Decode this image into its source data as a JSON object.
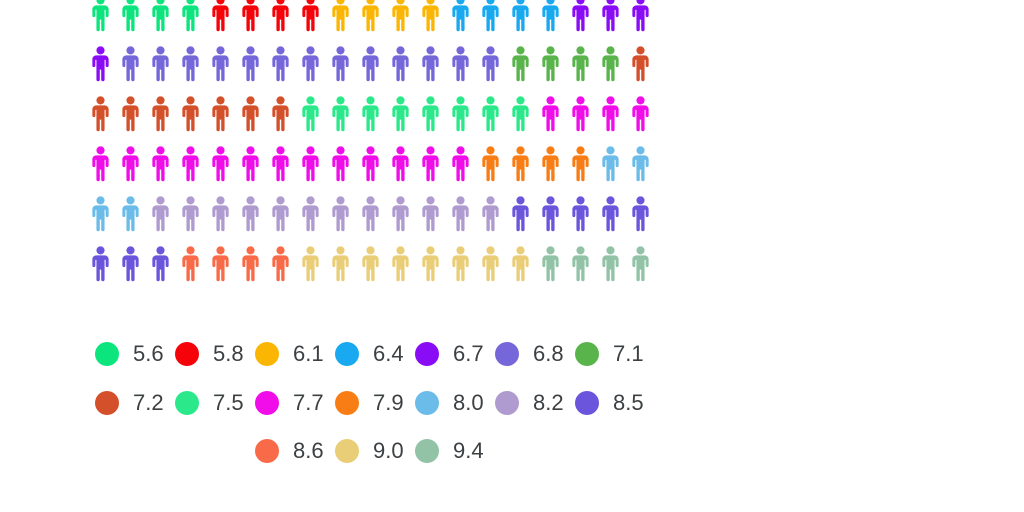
{
  "chart_data": {
    "type": "pictogram",
    "title": "",
    "unit_icon": "person-icon",
    "icons_per_row": 19,
    "categories": [
      "5.6",
      "5.8",
      "6.1",
      "6.4",
      "6.7",
      "6.8",
      "7.1",
      "7.2",
      "7.5",
      "7.7",
      "7.9",
      "8.0",
      "8.2",
      "8.5",
      "8.6",
      "9.0",
      "9.4"
    ],
    "values": [
      4,
      4,
      4,
      4,
      4,
      13,
      4,
      8,
      8,
      17,
      4,
      4,
      12,
      8,
      4,
      8,
      4
    ],
    "colors": {
      "5.6": "#0CE57D",
      "5.8": "#F50309",
      "6.1": "#FBB604",
      "6.4": "#18A9F1",
      "6.7": "#8A0BF6",
      "6.8": "#7567DA",
      "7.1": "#5AB44C",
      "7.2": "#D4502B",
      "7.5": "#2BE98B",
      "7.7": "#F10DE9",
      "7.9": "#F97D15",
      "8.0": "#6CBCE9",
      "8.2": "#AF9BCF",
      "8.5": "#6B55DC",
      "8.6": "#F96B48",
      "9.0": "#EACD77",
      "9.4": "#92C3A7"
    },
    "rows": [
      [
        {
          "value": "5.6",
          "count": 4
        },
        {
          "value": "5.8",
          "count": 4
        },
        {
          "value": "6.1",
          "count": 4
        },
        {
          "value": "6.4",
          "count": 4
        },
        {
          "value": "6.7",
          "count": 3
        }
      ],
      [
        {
          "value": "6.7",
          "count": 1
        },
        {
          "value": "6.8",
          "count": 13
        },
        {
          "value": "7.1",
          "count": 4
        },
        {
          "value": "7.2",
          "count": 1
        }
      ],
      [
        {
          "value": "7.2",
          "count": 7
        },
        {
          "value": "7.5",
          "count": 8
        },
        {
          "value": "7.7",
          "count": 4
        }
      ],
      [
        {
          "value": "7.7",
          "count": 13
        },
        {
          "value": "7.9",
          "count": 4
        },
        {
          "value": "8.0",
          "count": 2
        }
      ],
      [
        {
          "value": "8.0",
          "count": 2
        },
        {
          "value": "8.2",
          "count": 12
        },
        {
          "value": "8.5",
          "count": 5
        }
      ],
      [
        {
          "value": "8.5",
          "count": 3
        },
        {
          "value": "8.6",
          "count": 4
        },
        {
          "value": "9.0",
          "count": 8
        },
        {
          "value": "9.4",
          "count": 4
        }
      ]
    ],
    "legend": {
      "position": "bottom",
      "label_color": "#3C4043",
      "rows": [
        [
          "5.6",
          "5.8",
          "6.1",
          "6.4",
          "6.7",
          "6.8",
          "7.1"
        ],
        [
          "7.2",
          "7.5",
          "7.7",
          "7.9",
          "8.0",
          "8.2",
          "8.5"
        ],
        [
          "8.6",
          "9.0",
          "9.4"
        ]
      ]
    }
  },
  "layout_hints": {
    "top_icon_row_clipped": true
  }
}
